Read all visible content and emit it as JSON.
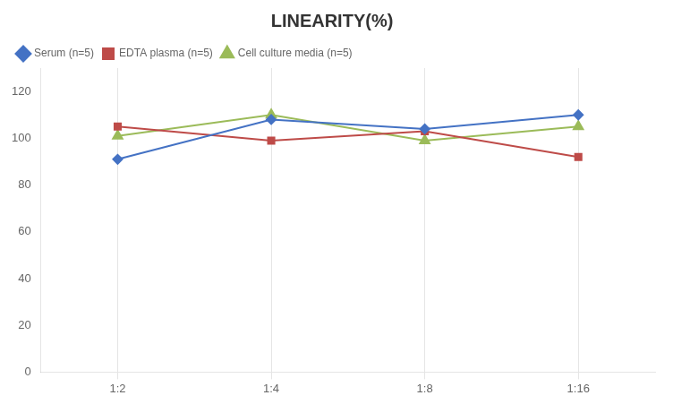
{
  "chart_data": {
    "type": "line",
    "title": "LINEARITY(%)",
    "categories": [
      "1:2",
      "1:4",
      "1:8",
      "1:16"
    ],
    "series": [
      {
        "name": "Serum (n=5)",
        "color": "#4472C4",
        "marker": "diamond",
        "values": [
          91,
          108,
          104,
          110
        ]
      },
      {
        "name": "EDTA plasma (n=5)",
        "color": "#BE4B48",
        "marker": "square",
        "values": [
          105,
          99,
          103,
          92
        ]
      },
      {
        "name": "Cell culture media (n=5)",
        "color": "#9BBB59",
        "marker": "triangle",
        "values": [
          101,
          110,
          99,
          105
        ]
      }
    ],
    "ylim": [
      0,
      130
    ],
    "yticks": [
      0,
      20,
      40,
      60,
      80,
      100,
      120
    ],
    "grid": "x",
    "legend": "top"
  }
}
